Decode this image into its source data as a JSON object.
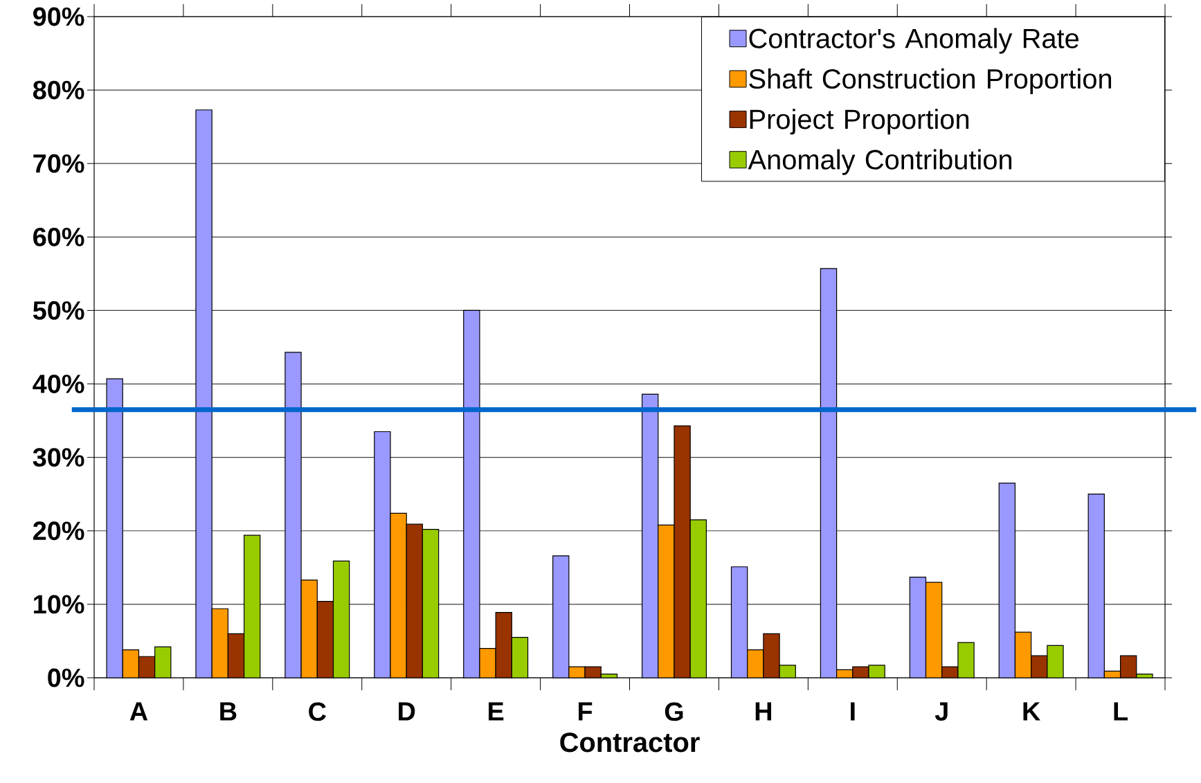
{
  "chart_data": {
    "type": "bar",
    "xlabel": "Contractor",
    "categories": [
      "A",
      "B",
      "C",
      "D",
      "E",
      "F",
      "G",
      "H",
      "I",
      "J",
      "K",
      "L"
    ],
    "series": [
      {
        "name": "Contractor's Anomaly Rate",
        "color": "#9999ff",
        "values": [
          40.7,
          77.3,
          44.3,
          33.5,
          50.0,
          16.6,
          38.6,
          15.1,
          55.7,
          13.7,
          26.5,
          25.0
        ]
      },
      {
        "name": "Shaft Construction Proportion",
        "color": "#ff9900",
        "values": [
          3.8,
          9.4,
          13.3,
          22.4,
          4.0,
          1.5,
          20.8,
          3.8,
          1.1,
          13.0,
          6.2,
          0.9
        ]
      },
      {
        "name": "Project Proportion",
        "color": "#993300",
        "values": [
          2.9,
          6.0,
          10.4,
          20.9,
          8.9,
          1.5,
          34.3,
          6.0,
          1.5,
          1.5,
          3.0,
          3.0
        ]
      },
      {
        "name": "Anomaly Contribution",
        "color": "#99cc00",
        "values": [
          4.2,
          19.4,
          15.9,
          20.2,
          5.5,
          0.5,
          21.5,
          1.7,
          1.7,
          4.8,
          4.4,
          0.5
        ]
      }
    ],
    "ylim": [
      0,
      90
    ],
    "yticks": [
      {
        "value": 0,
        "label": "0%"
      },
      {
        "value": 10,
        "label": "10%"
      },
      {
        "value": 20,
        "label": "20%"
      },
      {
        "value": 30,
        "label": "30%"
      },
      {
        "value": 40,
        "label": "40%"
      },
      {
        "value": 50,
        "label": "50%"
      },
      {
        "value": 60,
        "label": "60%"
      },
      {
        "value": 70,
        "label": "70%"
      },
      {
        "value": 80,
        "label": "80%"
      },
      {
        "value": 90,
        "label": "90%"
      }
    ],
    "ref_lines": [
      {
        "axis": "y",
        "value": 36.5,
        "color": "#0066cc"
      }
    ],
    "grid": "y",
    "legend": "top right"
  }
}
